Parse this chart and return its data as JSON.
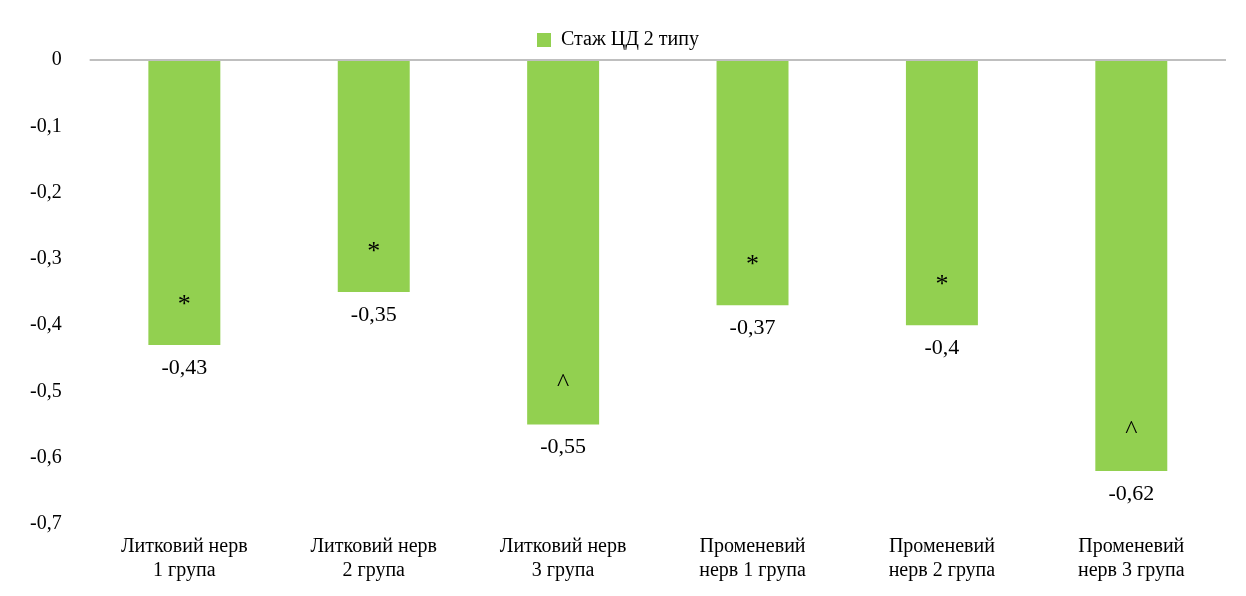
{
  "chart_data": {
    "type": "bar",
    "categories": [
      "Литковий нерв 1 група",
      "Литковий нерв 2 група",
      "Литковий нерв 3 група",
      "Променевий нерв 1 група",
      "Променевий нерв 2 група",
      "Променевий нерв 3 група"
    ],
    "series": [
      {
        "name": "Стаж ЦД 2 типу",
        "color": "#92d050",
        "values": [
          -0.43,
          -0.35,
          -0.55,
          -0.37,
          -0.4,
          -0.62
        ]
      }
    ],
    "ylim": [
      -0.7,
      0
    ],
    "yticks": [
      {
        "value": 0,
        "label": "0"
      },
      {
        "value": -0.1,
        "label": "-0,1"
      },
      {
        "value": -0.2,
        "label": "-0,2"
      },
      {
        "value": -0.3,
        "label": "-0,3"
      },
      {
        "value": -0.4,
        "label": "-0,4"
      },
      {
        "value": -0.5,
        "label": "-0,5"
      },
      {
        "value": -0.6,
        "label": "-0,6"
      },
      {
        "value": -0.7,
        "label": "-0,7"
      }
    ],
    "value_labels": [
      "-0,43",
      "-0,35",
      "-0,55",
      "-0,37",
      "-0,4",
      "-0,62"
    ],
    "annotations": [
      "*",
      "*",
      "^",
      "*",
      "*",
      "^"
    ],
    "grid": false,
    "legend": "top"
  }
}
